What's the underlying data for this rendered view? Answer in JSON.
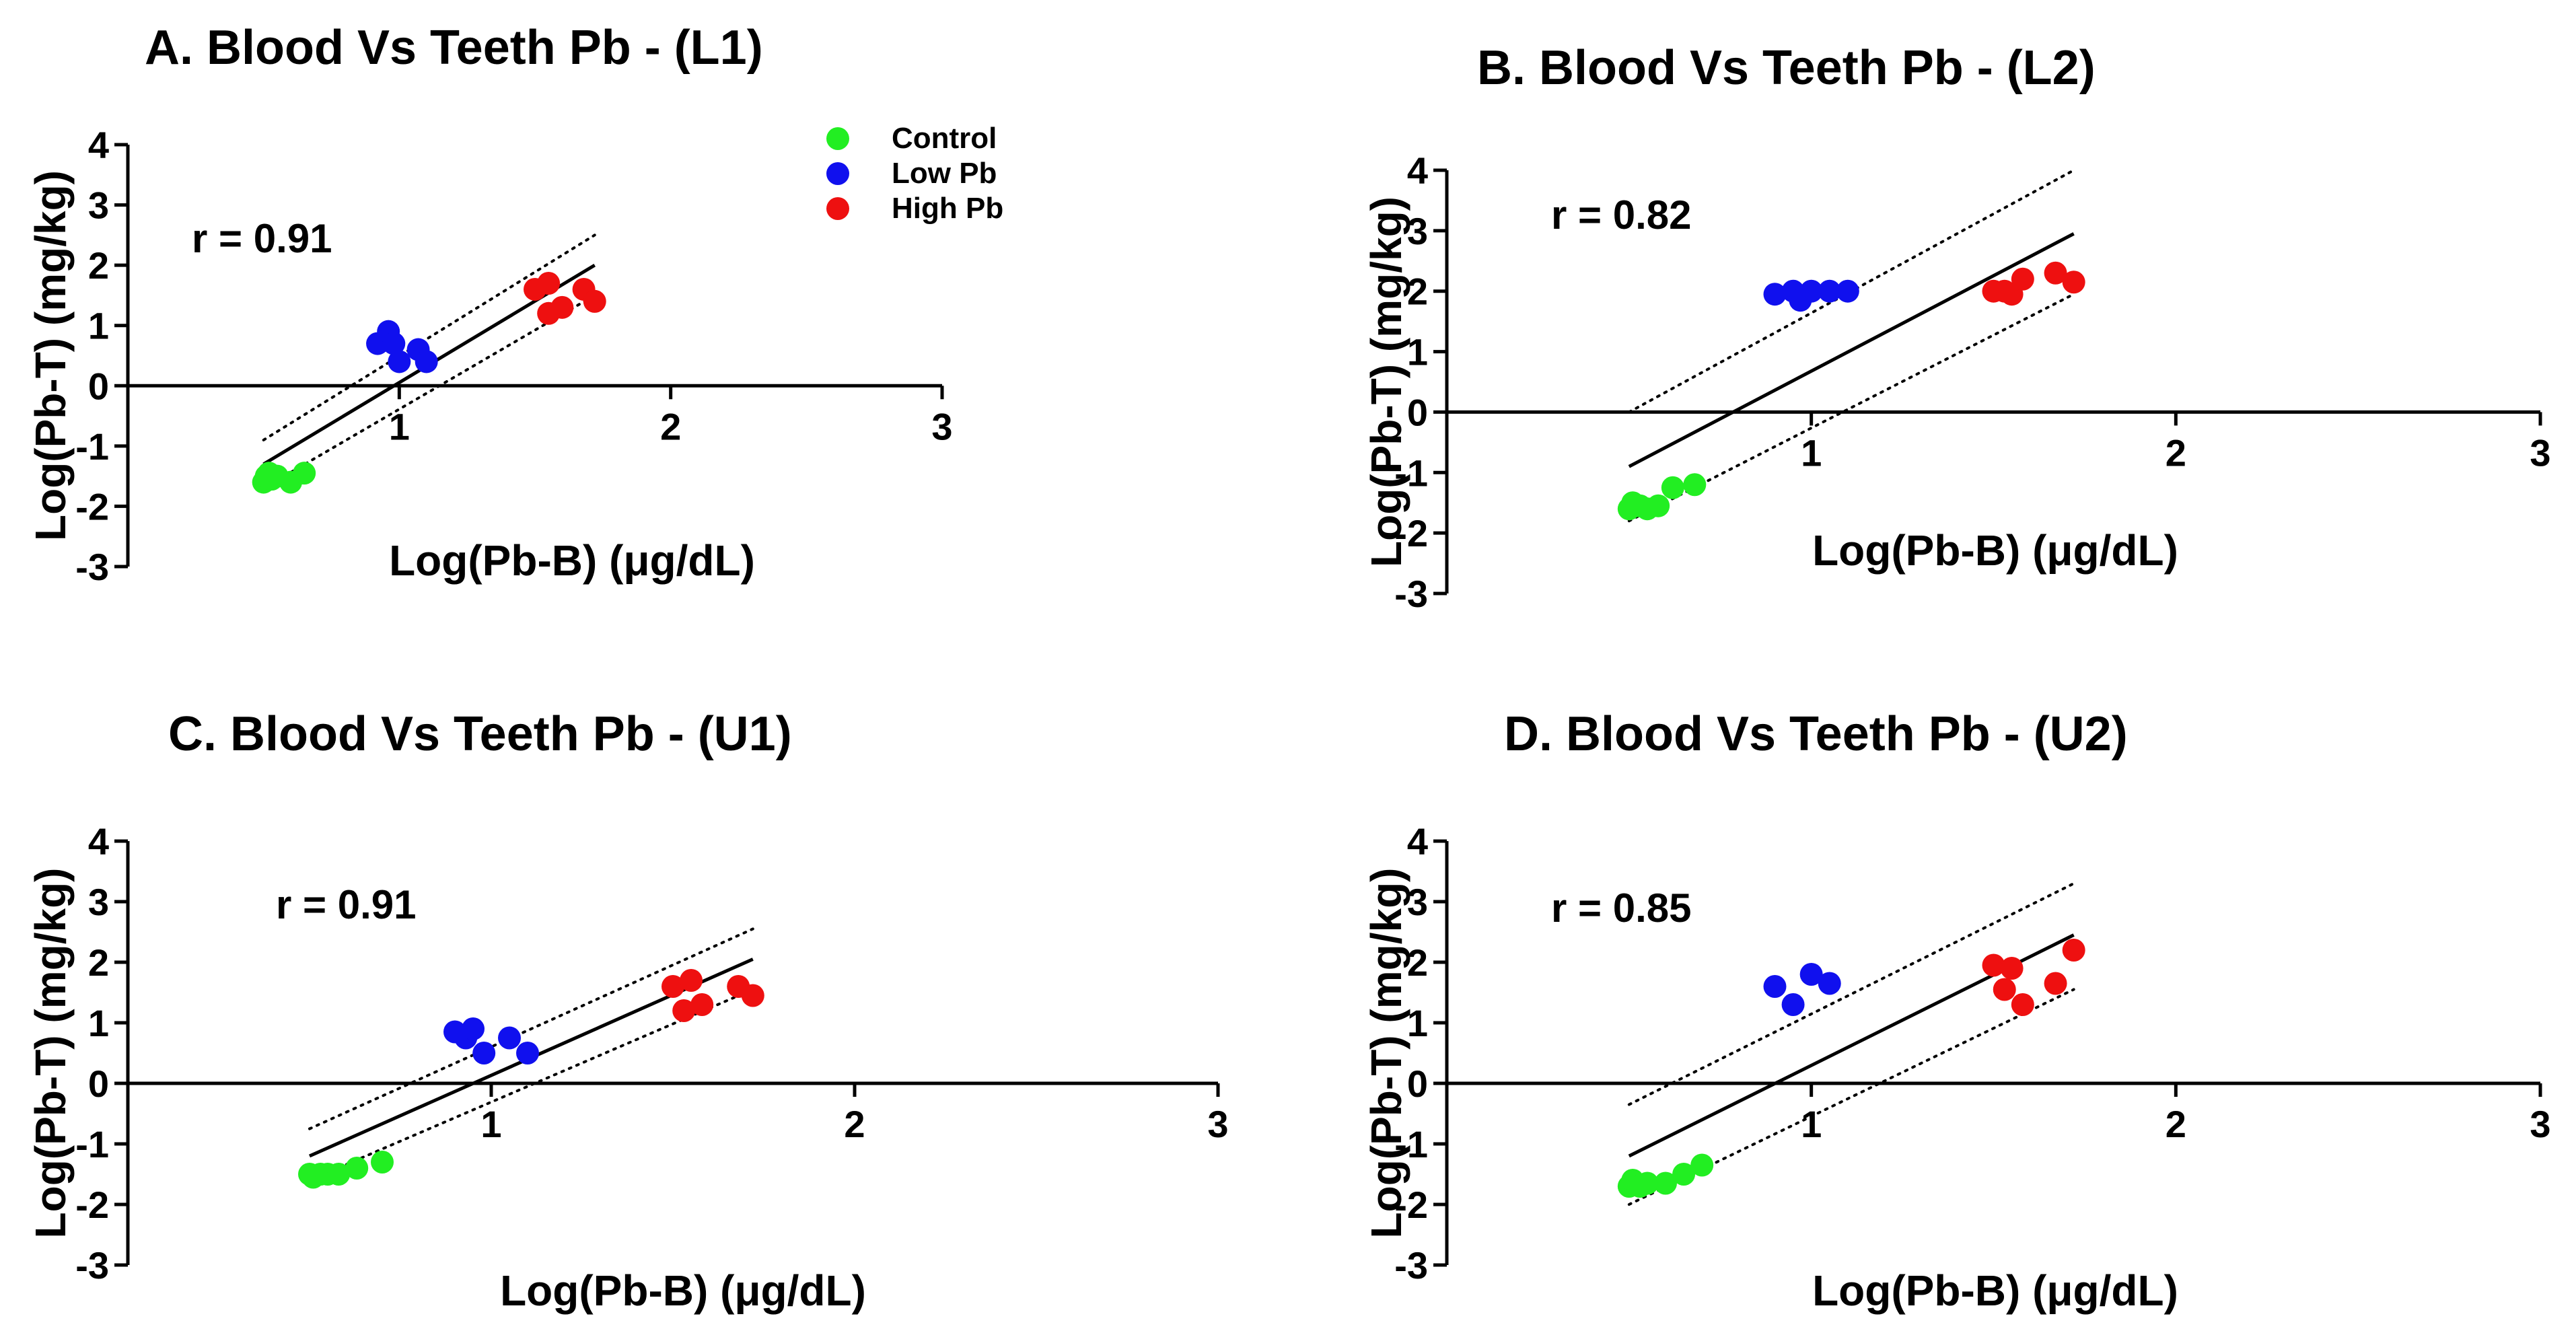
{
  "chart_data": [
    {
      "panel": "A",
      "type": "scatter",
      "title": "A. Blood Vs Teeth Pb - (L1)",
      "xlabel": "Log(Pb-B) (μg/dL)",
      "ylabel": "Log(Pb-T) (mg/kg)",
      "xlim": [
        0,
        3
      ],
      "ylim": [
        -3,
        4
      ],
      "xticks": [
        "1",
        "2",
        "3"
      ],
      "yticks": [
        "4",
        "3",
        "2",
        "1",
        "0",
        "-1",
        "-2",
        "-3"
      ],
      "annotation": "r = 0.91",
      "legend": [
        "Control",
        "Low Pb",
        "High Pb"
      ],
      "legend_position": "top-right",
      "colors": {
        "Control": "#22ee22",
        "Low Pb": "#1010ee",
        "High Pb": "#ee1010"
      },
      "series": [
        {
          "name": "Control",
          "points": [
            [
              0.5,
              -1.6
            ],
            [
              0.51,
              -1.5
            ],
            [
              0.52,
              -1.45
            ],
            [
              0.53,
              -1.55
            ],
            [
              0.55,
              -1.5
            ],
            [
              0.6,
              -1.6
            ],
            [
              0.65,
              -1.45
            ]
          ]
        },
        {
          "name": "Low Pb",
          "points": [
            [
              0.92,
              0.7
            ],
            [
              0.96,
              0.9
            ],
            [
              0.98,
              0.7
            ],
            [
              1.0,
              0.4
            ],
            [
              1.07,
              0.6
            ],
            [
              1.1,
              0.4
            ]
          ]
        },
        {
          "name": "High Pb",
          "points": [
            [
              1.5,
              1.6
            ],
            [
              1.55,
              1.7
            ],
            [
              1.55,
              1.2
            ],
            [
              1.6,
              1.3
            ],
            [
              1.68,
              1.6
            ],
            [
              1.72,
              1.4
            ]
          ]
        }
      ],
      "fit": {
        "x": [
          0.5,
          1.72
        ],
        "y": [
          -1.3,
          2.0
        ]
      },
      "ci_upper": {
        "x": [
          0.5,
          1.72
        ],
        "y": [
          -0.9,
          2.5
        ]
      },
      "ci_lower": {
        "x": [
          0.5,
          1.72
        ],
        "y": [
          -1.7,
          1.5
        ]
      }
    },
    {
      "panel": "B",
      "type": "scatter",
      "title": "B. Blood Vs Teeth Pb - (L2)",
      "xlabel": "Log(Pb-B) (μg/dL)",
      "ylabel": "Log(Pb-T) (mg/kg)",
      "xlim": [
        0,
        3
      ],
      "ylim": [
        -3,
        4
      ],
      "xticks": [
        "1",
        "2",
        "3"
      ],
      "yticks": [
        "4",
        "3",
        "2",
        "1",
        "0",
        "-1",
        "-2",
        "-3"
      ],
      "annotation": "r = 0.82",
      "colors": {
        "Control": "#22ee22",
        "Low Pb": "#1010ee",
        "High Pb": "#ee1010"
      },
      "series": [
        {
          "name": "Control",
          "points": [
            [
              0.5,
              -1.6
            ],
            [
              0.51,
              -1.5
            ],
            [
              0.53,
              -1.55
            ],
            [
              0.55,
              -1.6
            ],
            [
              0.58,
              -1.55
            ],
            [
              0.62,
              -1.25
            ],
            [
              0.68,
              -1.2
            ]
          ]
        },
        {
          "name": "Low Pb",
          "points": [
            [
              0.9,
              1.95
            ],
            [
              0.95,
              2.0
            ],
            [
              0.97,
              1.85
            ],
            [
              1.0,
              2.0
            ],
            [
              1.05,
              2.0
            ],
            [
              1.1,
              2.0
            ]
          ]
        },
        {
          "name": "High Pb",
          "points": [
            [
              1.5,
              2.0
            ],
            [
              1.53,
              2.0
            ],
            [
              1.55,
              1.95
            ],
            [
              1.58,
              2.2
            ],
            [
              1.67,
              2.3
            ],
            [
              1.72,
              2.15
            ]
          ]
        }
      ],
      "fit": {
        "x": [
          0.5,
          1.72
        ],
        "y": [
          -0.9,
          2.95
        ]
      },
      "ci_upper": {
        "x": [
          0.5,
          1.72
        ],
        "y": [
          0.0,
          4.0
        ]
      },
      "ci_lower": {
        "x": [
          0.5,
          1.72
        ],
        "y": [
          -1.8,
          1.95
        ]
      }
    },
    {
      "panel": "C",
      "type": "scatter",
      "title": "C. Blood Vs Teeth Pb - (U1)",
      "xlabel": "Log(Pb-B) (μg/dL)",
      "ylabel": "Log(Pb-T) (mg/kg)",
      "xlim": [
        0,
        3
      ],
      "ylim": [
        -3,
        4
      ],
      "xticks": [
        "1",
        "2",
        "3"
      ],
      "yticks": [
        "4",
        "3",
        "2",
        "1",
        "0",
        "-1",
        "-2",
        "-3"
      ],
      "annotation": "r = 0.91",
      "colors": {
        "Control": "#22ee22",
        "Low Pb": "#1010ee",
        "High Pb": "#ee1010"
      },
      "series": [
        {
          "name": "Control",
          "points": [
            [
              0.5,
              -1.5
            ],
            [
              0.51,
              -1.55
            ],
            [
              0.53,
              -1.5
            ],
            [
              0.55,
              -1.5
            ],
            [
              0.58,
              -1.5
            ],
            [
              0.63,
              -1.4
            ],
            [
              0.7,
              -1.3
            ]
          ]
        },
        {
          "name": "Low Pb",
          "points": [
            [
              0.9,
              0.85
            ],
            [
              0.93,
              0.75
            ],
            [
              0.95,
              0.9
            ],
            [
              0.98,
              0.5
            ],
            [
              1.05,
              0.75
            ],
            [
              1.1,
              0.5
            ]
          ]
        },
        {
          "name": "High Pb",
          "points": [
            [
              1.5,
              1.6
            ],
            [
              1.53,
              1.2
            ],
            [
              1.55,
              1.7
            ],
            [
              1.58,
              1.3
            ],
            [
              1.68,
              1.6
            ],
            [
              1.72,
              1.45
            ]
          ]
        }
      ],
      "fit": {
        "x": [
          0.5,
          1.72
        ],
        "y": [
          -1.2,
          2.05
        ]
      },
      "ci_upper": {
        "x": [
          0.5,
          1.72
        ],
        "y": [
          -0.75,
          2.55
        ]
      },
      "ci_lower": {
        "x": [
          0.5,
          1.72
        ],
        "y": [
          -1.6,
          1.55
        ]
      }
    },
    {
      "panel": "D",
      "type": "scatter",
      "title": "D. Blood Vs Teeth Pb - (U2)",
      "xlabel": "Log(Pb-B) (μg/dL)",
      "ylabel": "Log(Pb-T) (mg/kg)",
      "xlim": [
        0,
        3
      ],
      "ylim": [
        -3,
        4
      ],
      "xticks": [
        "1",
        "2",
        "3"
      ],
      "yticks": [
        "4",
        "3",
        "2",
        "1",
        "0",
        "-1",
        "-2",
        "-3"
      ],
      "annotation": "r = 0.85",
      "colors": {
        "Control": "#22ee22",
        "Low Pb": "#1010ee",
        "High Pb": "#ee1010"
      },
      "series": [
        {
          "name": "Control",
          "points": [
            [
              0.5,
              -1.7
            ],
            [
              0.51,
              -1.6
            ],
            [
              0.53,
              -1.7
            ],
            [
              0.55,
              -1.65
            ],
            [
              0.6,
              -1.65
            ],
            [
              0.65,
              -1.5
            ],
            [
              0.7,
              -1.35
            ]
          ]
        },
        {
          "name": "Low Pb",
          "points": [
            [
              0.9,
              1.6
            ],
            [
              0.95,
              1.3
            ],
            [
              1.0,
              1.8
            ],
            [
              1.05,
              1.65
            ]
          ]
        },
        {
          "name": "High Pb",
          "points": [
            [
              1.5,
              1.95
            ],
            [
              1.53,
              1.55
            ],
            [
              1.55,
              1.9
            ],
            [
              1.58,
              1.3
            ],
            [
              1.67,
              1.65
            ],
            [
              1.72,
              2.2
            ]
          ]
        }
      ],
      "fit": {
        "x": [
          0.5,
          1.72
        ],
        "y": [
          -1.2,
          2.45
        ]
      },
      "ci_upper": {
        "x": [
          0.5,
          1.72
        ],
        "y": [
          -0.35,
          3.3
        ]
      },
      "ci_lower": {
        "x": [
          0.5,
          1.72
        ],
        "y": [
          -2.0,
          1.55
        ]
      }
    }
  ]
}
